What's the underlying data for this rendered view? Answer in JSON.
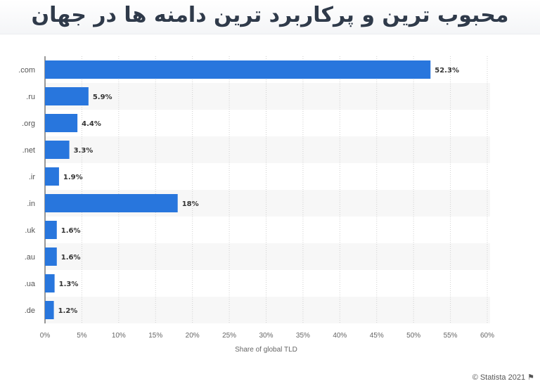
{
  "header": {
    "title": "محبوب ترین و پرکاربرد ترین دامنه ها در جهان"
  },
  "credit": {
    "text": "© Statista 2021",
    "icon": "flag-icon"
  },
  "chart_data": {
    "type": "bar",
    "orientation": "horizontal",
    "categories": [
      ".com",
      ".ru",
      ".org",
      ".net",
      ".ir",
      ".in",
      ".uk",
      ".au",
      ".ua",
      ".de"
    ],
    "values": [
      52.3,
      5.9,
      4.4,
      3.3,
      1.9,
      18,
      1.6,
      1.6,
      1.3,
      1.2
    ],
    "data_labels": [
      "52.3%",
      "5.9%",
      "4.4%",
      "3.3%",
      "1.9%",
      "18%",
      "1.6%",
      "1.6%",
      "1.3%",
      "1.2%"
    ],
    "xlabel": "Share of global TLD",
    "ylabel": "",
    "xlim": [
      0,
      60
    ],
    "xticks": [
      "0%",
      "5%",
      "10%",
      "15%",
      "20%",
      "25%",
      "30%",
      "35%",
      "40%",
      "45%",
      "50%",
      "55%",
      "60%"
    ],
    "grid": true,
    "bar_color": "#2876dd"
  }
}
